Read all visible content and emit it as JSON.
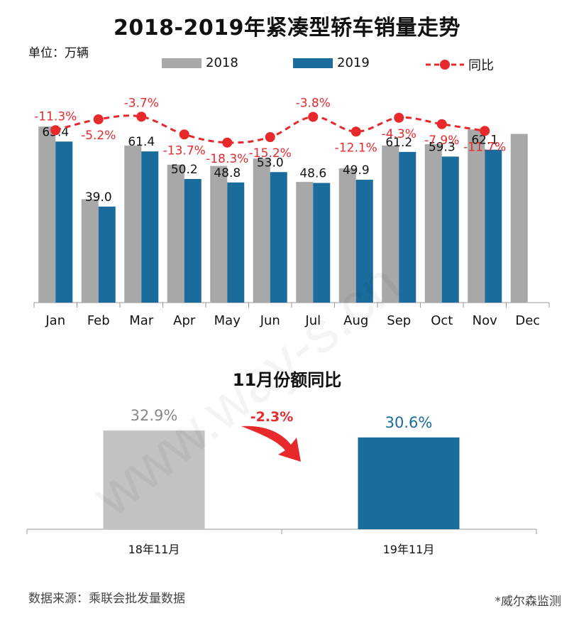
{
  "title": "2018-2019年紧凑型轿车销量走势",
  "unit": "单位：万辆",
  "legend": {
    "s2018": "2018",
    "s2019": "2019",
    "yoy": "同比"
  },
  "colors": {
    "s2018": "#a8a8a8",
    "s2019": "#1a6c9c",
    "yoy": "#e8292c",
    "arrow": "#e8292c",
    "bottom_2018": "#c2c2c4",
    "bottom_2019": "#1a6c9c"
  },
  "chart_data": [
    {
      "type": "bar",
      "categories": [
        "Jan",
        "Feb",
        "Mar",
        "Apr",
        "May",
        "Jun",
        "Jul",
        "Aug",
        "Sep",
        "Oct",
        "Nov",
        "Dec"
      ],
      "series": [
        {
          "name": "2018",
          "values": [
            71.5,
            42.0,
            63.8,
            56.0,
            55.5,
            58.5,
            49.0,
            54.5,
            63.8,
            64.3,
            70.3,
            68.5
          ]
        },
        {
          "name": "2019",
          "values": [
            65.4,
            39.0,
            61.4,
            50.2,
            48.8,
            53.0,
            48.6,
            49.9,
            61.2,
            59.3,
            62.1,
            null
          ]
        }
      ],
      "labels_2019": [
        "65.4",
        "39.0",
        "61.4",
        "50.2",
        "48.8",
        "53.0",
        "48.6",
        "49.9",
        "61.2",
        "59.3",
        "62.1"
      ],
      "yoy": {
        "name": "同比",
        "values": [
          -11.3,
          -5.2,
          -3.7,
          -13.7,
          -18.3,
          -15.2,
          -3.8,
          -12.1,
          -4.3,
          -7.9,
          -11.7
        ],
        "labels": [
          "-11.3%",
          "-5.2%",
          "-3.7%",
          "-13.7%",
          "-18.3%",
          "-15.2%",
          "-3.8%",
          "-12.1%",
          "-4.3%",
          "-7.9%",
          "-11.7%"
        ],
        "label_pos": [
          "above",
          "below",
          "above",
          "below",
          "below",
          "below",
          "above",
          "below",
          "below",
          "below",
          "below"
        ]
      },
      "ylim": [
        0,
        75
      ],
      "yoy_ylim": [
        -20,
        -2
      ]
    },
    {
      "type": "bar",
      "title": "11月份额同比",
      "categories": [
        "18年11月",
        "19年11月"
      ],
      "values": [
        32.9,
        30.6
      ],
      "value_labels": [
        "32.9%",
        "30.6%"
      ],
      "change_label": "-2.3%",
      "ylim": [
        0,
        45
      ]
    }
  ],
  "bottom_title": "11月份额同比",
  "source": "数据来源：乘联会批发量数据",
  "monitor": "*威尔森监测",
  "watermark": "www.way-s.cn"
}
